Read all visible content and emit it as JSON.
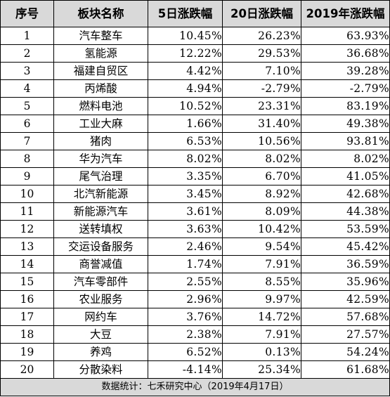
{
  "columns": [
    "序号",
    "板块名称",
    "5日涨跌幅",
    "20日涨跌幅",
    "2019年涨跌幅"
  ],
  "rows": [
    {
      "idx": "1",
      "name": "汽车整车",
      "d5": "10.45%",
      "d20": "26.23%",
      "ytd": "63.93%"
    },
    {
      "idx": "2",
      "name": "氢能源",
      "d5": "12.22%",
      "d20": "29.53%",
      "ytd": "36.68%"
    },
    {
      "idx": "3",
      "name": "福建自贸区",
      "d5": "4.42%",
      "d20": "7.10%",
      "ytd": "39.28%"
    },
    {
      "idx": "4",
      "name": "丙烯酸",
      "d5": "4.94%",
      "d20": "-2.79%",
      "ytd": "-2.79%"
    },
    {
      "idx": "5",
      "name": "燃料电池",
      "d5": "10.52%",
      "d20": "23.31%",
      "ytd": "83.19%"
    },
    {
      "idx": "6",
      "name": "工业大麻",
      "d5": "1.66%",
      "d20": "31.40%",
      "ytd": "49.38%"
    },
    {
      "idx": "7",
      "name": "猪肉",
      "d5": "6.53%",
      "d20": "10.56%",
      "ytd": "93.81%"
    },
    {
      "idx": "8",
      "name": "华为汽车",
      "d5": "8.02%",
      "d20": "8.02%",
      "ytd": "8.02%"
    },
    {
      "idx": "9",
      "name": "尾气治理",
      "d5": "3.35%",
      "d20": "6.70%",
      "ytd": "41.05%"
    },
    {
      "idx": "10",
      "name": "北汽新能源",
      "d5": "3.45%",
      "d20": "8.92%",
      "ytd": "42.68%"
    },
    {
      "idx": "11",
      "name": "新能源汽车",
      "d5": "3.61%",
      "d20": "8.09%",
      "ytd": "44.38%"
    },
    {
      "idx": "12",
      "name": "送转填权",
      "d5": "3.63%",
      "d20": "10.42%",
      "ytd": "53.59%"
    },
    {
      "idx": "13",
      "name": "交运设备服务",
      "d5": "2.46%",
      "d20": "9.54%",
      "ytd": "45.42%"
    },
    {
      "idx": "14",
      "name": "商誉减值",
      "d5": "1.74%",
      "d20": "7.91%",
      "ytd": "36.59%"
    },
    {
      "idx": "15",
      "name": "汽车零部件",
      "d5": "2.55%",
      "d20": "8.55%",
      "ytd": "35.96%"
    },
    {
      "idx": "16",
      "name": "农业服务",
      "d5": "2.96%",
      "d20": "9.97%",
      "ytd": "42.59%"
    },
    {
      "idx": "17",
      "name": "网约车",
      "d5": "3.76%",
      "d20": "14.72%",
      "ytd": "57.68%"
    },
    {
      "idx": "18",
      "name": "大豆",
      "d5": "2.38%",
      "d20": "7.91%",
      "ytd": "27.57%"
    },
    {
      "idx": "19",
      "name": "养鸡",
      "d5": "6.52%",
      "d20": "0.13%",
      "ytd": "54.24%"
    },
    {
      "idx": "20",
      "name": "分散染料",
      "d5": "-4.14%",
      "d20": "25.34%",
      "ytd": "61.68%"
    }
  ],
  "footer": "数据统计：七禾研究中心（2019年4月17日）",
  "colors": {
    "header_bg": "#d9d9d9",
    "footer_bg": "#d9d9d9",
    "border": "#000000"
  }
}
